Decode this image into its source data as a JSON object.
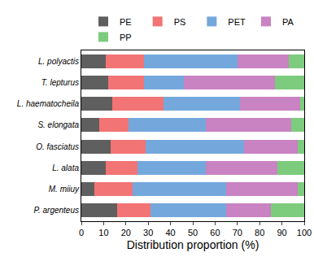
{
  "chart_data": {
    "type": "bar",
    "orientation": "horizontal",
    "stacked": true,
    "legend": "top",
    "grid": false,
    "x_label": "Distribution proportion (%)",
    "categories": [
      "L. polyactis",
      "T. lepturus",
      "L. haematocheila",
      "S. elongata",
      "O. fasciatus",
      "L. alata",
      "M. miiuy",
      "P. argenteus"
    ],
    "series": [
      {
        "name": "PE",
        "color": "#5f5f5f",
        "values": [
          11,
          12,
          14,
          8,
          13,
          11,
          6,
          16
        ]
      },
      {
        "name": "PS",
        "color": "#f27474",
        "values": [
          17,
          16,
          23,
          13,
          16,
          14,
          17,
          15
        ]
      },
      {
        "name": "PET",
        "color": "#74a8dc",
        "values": [
          42,
          18,
          34,
          35,
          44,
          31,
          42,
          34
        ]
      },
      {
        "name": "PA",
        "color": "#c982c2",
        "values": [
          23,
          41,
          27,
          38,
          24,
          32,
          32,
          20
        ]
      },
      {
        "name": "PP",
        "color": "#7dcb7d",
        "values": [
          7,
          13,
          2,
          6,
          3,
          12,
          3,
          15
        ]
      }
    ],
    "xlim": [
      0,
      100
    ],
    "xticks": [
      0,
      10,
      20,
      30,
      40,
      50,
      60,
      70,
      80,
      90,
      100
    ]
  }
}
